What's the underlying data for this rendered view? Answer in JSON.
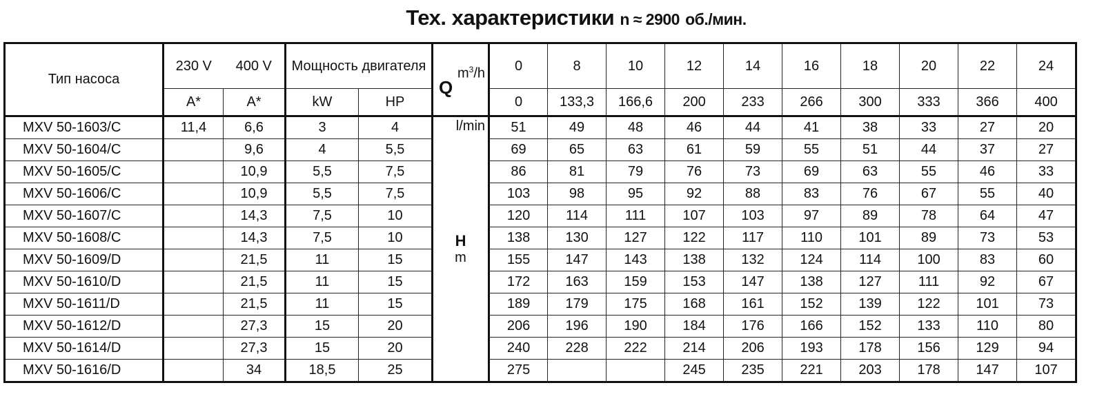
{
  "title": {
    "main": "Тех. характеристики",
    "n": "n ≈ 2900",
    "unit": "об./мин."
  },
  "header": {
    "pump_type": "Тип насоса",
    "v230": "230 V",
    "v400": "400 V",
    "amp230": "A*",
    "amp400": "A*",
    "power": "Мощность двигателя",
    "kw": "kW",
    "hp": "HP",
    "q": "Q",
    "q_unit_m3h": "m3/h",
    "q_unit_lmin": "l/min",
    "h": "H",
    "h_unit": "m"
  },
  "flow_m3h": [
    "0",
    "8",
    "10",
    "12",
    "14",
    "16",
    "18",
    "20",
    "22",
    "24"
  ],
  "flow_lmin": [
    "0",
    "133,3",
    "166,6",
    "200",
    "233",
    "266",
    "300",
    "333",
    "366",
    "400"
  ],
  "rows": [
    {
      "type": "MXV 50-1603/C",
      "a230": "11,4",
      "a400": "6,6",
      "kw": "3",
      "hp": "4",
      "h": [
        "51",
        "49",
        "48",
        "46",
        "44",
        "41",
        "38",
        "33",
        "27",
        "20"
      ]
    },
    {
      "type": "MXV 50-1604/C",
      "a230": "",
      "a400": "9,6",
      "kw": "4",
      "hp": "5,5",
      "h": [
        "69",
        "65",
        "63",
        "61",
        "59",
        "55",
        "51",
        "44",
        "37",
        "27"
      ]
    },
    {
      "type": "MXV 50-1605/C",
      "a230": "",
      "a400": "10,9",
      "kw": "5,5",
      "hp": "7,5",
      "h": [
        "86",
        "81",
        "79",
        "76",
        "73",
        "69",
        "63",
        "55",
        "46",
        "33"
      ]
    },
    {
      "type": "MXV 50-1606/C",
      "a230": "",
      "a400": "10,9",
      "kw": "5,5",
      "hp": "7,5",
      "h": [
        "103",
        "98",
        "95",
        "92",
        "88",
        "83",
        "76",
        "67",
        "55",
        "40"
      ]
    },
    {
      "type": "MXV 50-1607/C",
      "a230": "",
      "a400": "14,3",
      "kw": "7,5",
      "hp": "10",
      "h": [
        "120",
        "114",
        "111",
        "107",
        "103",
        "97",
        "89",
        "78",
        "64",
        "47"
      ]
    },
    {
      "type": "MXV 50-1608/C",
      "a230": "",
      "a400": "14,3",
      "kw": "7,5",
      "hp": "10",
      "h": [
        "138",
        "130",
        "127",
        "122",
        "117",
        "110",
        "101",
        "89",
        "73",
        "53"
      ]
    },
    {
      "type": "MXV 50-1609/D",
      "a230": "",
      "a400": "21,5",
      "kw": "11",
      "hp": "15",
      "h": [
        "155",
        "147",
        "143",
        "138",
        "132",
        "124",
        "114",
        "100",
        "83",
        "60"
      ]
    },
    {
      "type": "MXV 50-1610/D",
      "a230": "",
      "a400": "21,5",
      "kw": "11",
      "hp": "15",
      "h": [
        "172",
        "163",
        "159",
        "153",
        "147",
        "138",
        "127",
        "111",
        "92",
        "67"
      ]
    },
    {
      "type": "MXV 50-1611/D",
      "a230": "",
      "a400": "21,5",
      "kw": "11",
      "hp": "15",
      "h": [
        "189",
        "179",
        "175",
        "168",
        "161",
        "152",
        "139",
        "122",
        "101",
        "73"
      ]
    },
    {
      "type": "MXV 50-1612/D",
      "a230": "",
      "a400": "27,3",
      "kw": "15",
      "hp": "20",
      "h": [
        "206",
        "196",
        "190",
        "184",
        "176",
        "166",
        "152",
        "133",
        "110",
        "80"
      ]
    },
    {
      "type": "MXV 50-1614/D",
      "a230": "",
      "a400": "27,3",
      "kw": "15",
      "hp": "20",
      "h": [
        "240",
        "228",
        "222",
        "214",
        "206",
        "193",
        "178",
        "156",
        "129",
        "94"
      ]
    },
    {
      "type": "MXV 50-1616/D",
      "a230": "",
      "a400": "34",
      "kw": "18,5",
      "hp": "25",
      "h": [
        "275",
        "",
        "",
        "245",
        "235",
        "221",
        "203",
        "178",
        "147",
        "107"
      ]
    }
  ]
}
